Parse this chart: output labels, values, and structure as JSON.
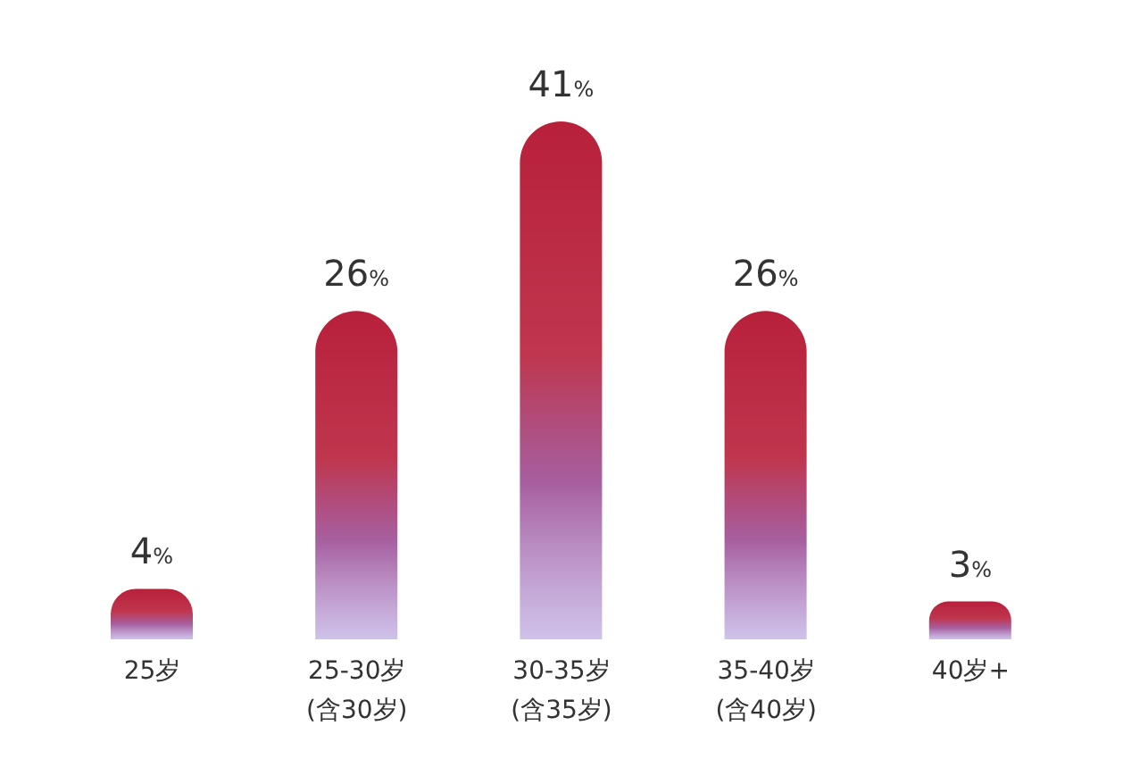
{
  "chart_data": {
    "type": "bar",
    "categories": [
      "25岁",
      "25-30岁\n(含30岁)",
      "30-35岁\n(含35岁)",
      "35-40岁\n(含40岁)",
      "40岁+"
    ],
    "values": [
      4,
      26,
      41,
      26,
      3
    ],
    "value_labels": [
      "4%",
      "26%",
      "41%",
      "26%",
      "3%"
    ],
    "color": "#b8203a",
    "grid": false,
    "legend": false
  }
}
